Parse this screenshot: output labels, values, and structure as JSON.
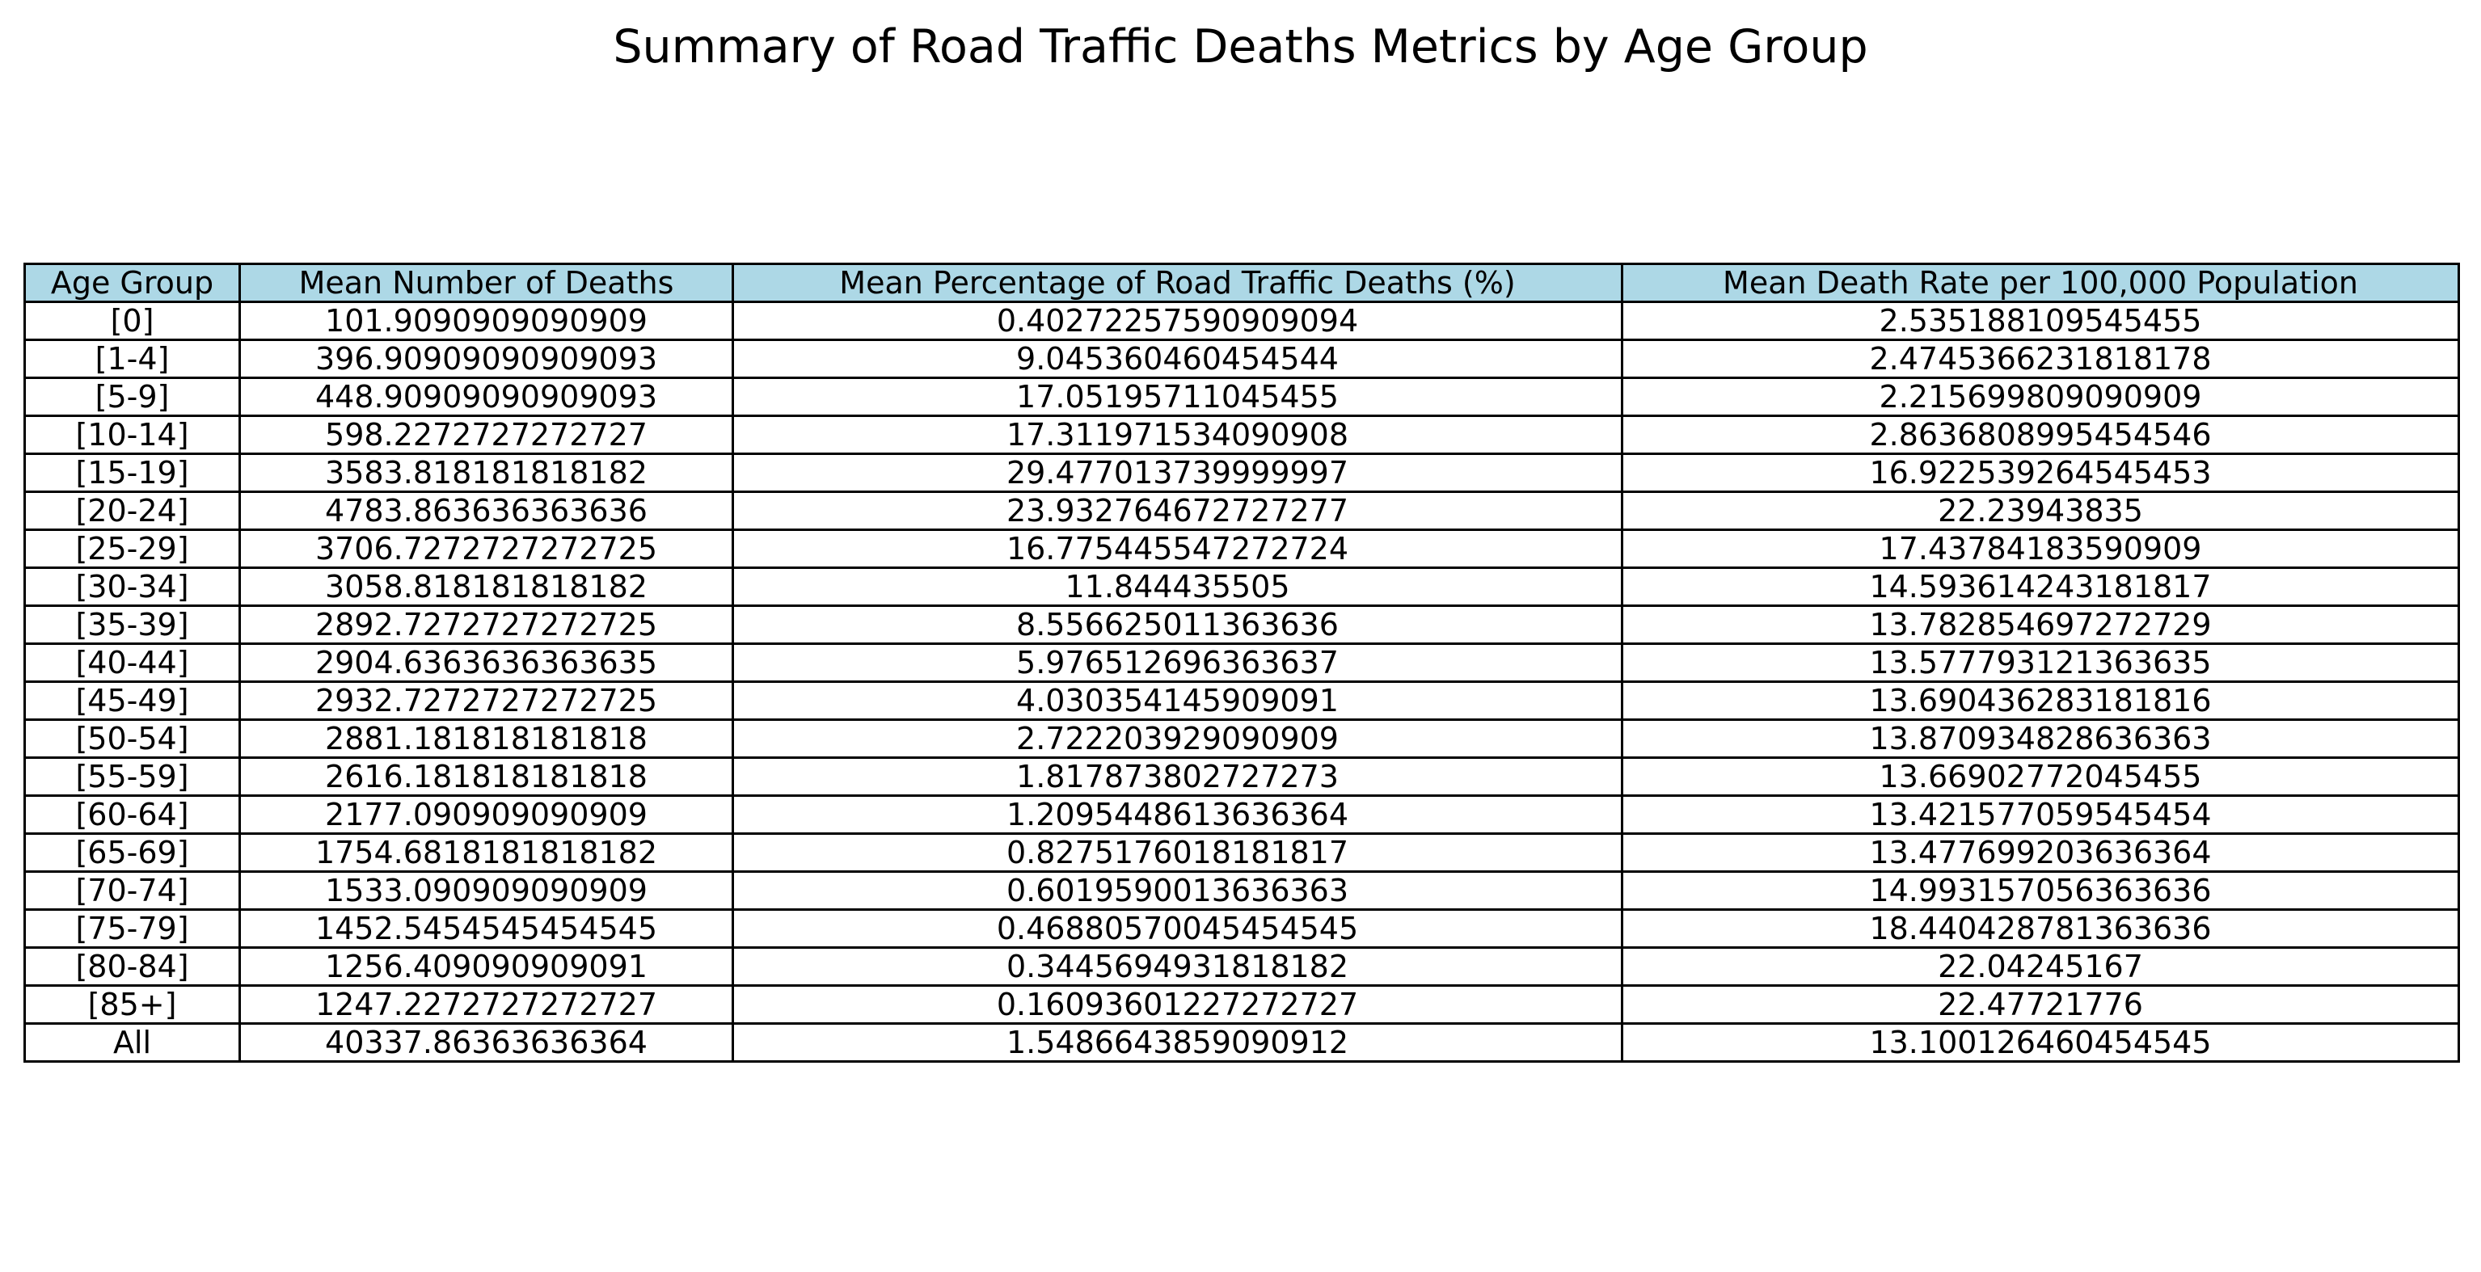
{
  "chart_data": {
    "type": "table",
    "title": "Summary of Road Traffic Deaths Metrics by Age Group",
    "header_color": "#add8e6",
    "columns": [
      "Age Group",
      "Mean Number of Deaths",
      "Mean Percentage of Road Traffic Deaths (%)",
      "Mean Death Rate per 100,000 Population"
    ],
    "rows": [
      [
        "[0]",
        "101.9090909090909",
        "0.40272257590909094",
        "2.535188109545455"
      ],
      [
        "[1-4]",
        "396.90909090909093",
        "9.045360460454544",
        "2.4745366231818178"
      ],
      [
        "[5-9]",
        "448.90909090909093",
        "17.05195711045455",
        "2.215699809090909"
      ],
      [
        "[10-14]",
        "598.2272727272727",
        "17.311971534090908",
        "2.8636808995454546"
      ],
      [
        "[15-19]",
        "3583.818181818182",
        "29.477013739999997",
        "16.922539264545453"
      ],
      [
        "[20-24]",
        "4783.863636363636",
        "23.932764672727277",
        "22.23943835"
      ],
      [
        "[25-29]",
        "3706.7272727272725",
        "16.775445547272724",
        "17.43784183590909"
      ],
      [
        "[30-34]",
        "3058.818181818182",
        "11.844435505",
        "14.593614243181817"
      ],
      [
        "[35-39]",
        "2892.7272727272725",
        "8.556625011363636",
        "13.782854697272729"
      ],
      [
        "[40-44]",
        "2904.6363636363635",
        "5.976512696363637",
        "13.577793121363635"
      ],
      [
        "[45-49]",
        "2932.7272727272725",
        "4.030354145909091",
        "13.690436283181816"
      ],
      [
        "[50-54]",
        "2881.181818181818",
        "2.722203929090909",
        "13.870934828636363"
      ],
      [
        "[55-59]",
        "2616.181818181818",
        "1.817873802727273",
        "13.66902772045455"
      ],
      [
        "[60-64]",
        "2177.090909090909",
        "1.2095448613636364",
        "13.421577059545454"
      ],
      [
        "[65-69]",
        "1754.6818181818182",
        "0.8275176018181817",
        "13.477699203636364"
      ],
      [
        "[70-74]",
        "1533.090909090909",
        "0.6019590013636363",
        "14.993157056363636"
      ],
      [
        "[75-79]",
        "1452.5454545454545",
        "0.46880570045454545",
        "18.440428781363636"
      ],
      [
        "[80-84]",
        "1256.409090909091",
        "0.3445694931818182",
        "22.04245167"
      ],
      [
        "[85+]",
        "1247.2272727272727",
        "0.16093601227272727",
        "22.47721776"
      ],
      [
        "All",
        "40337.86363636364",
        "1.5486643859090912",
        "13.100126460454545"
      ]
    ]
  }
}
